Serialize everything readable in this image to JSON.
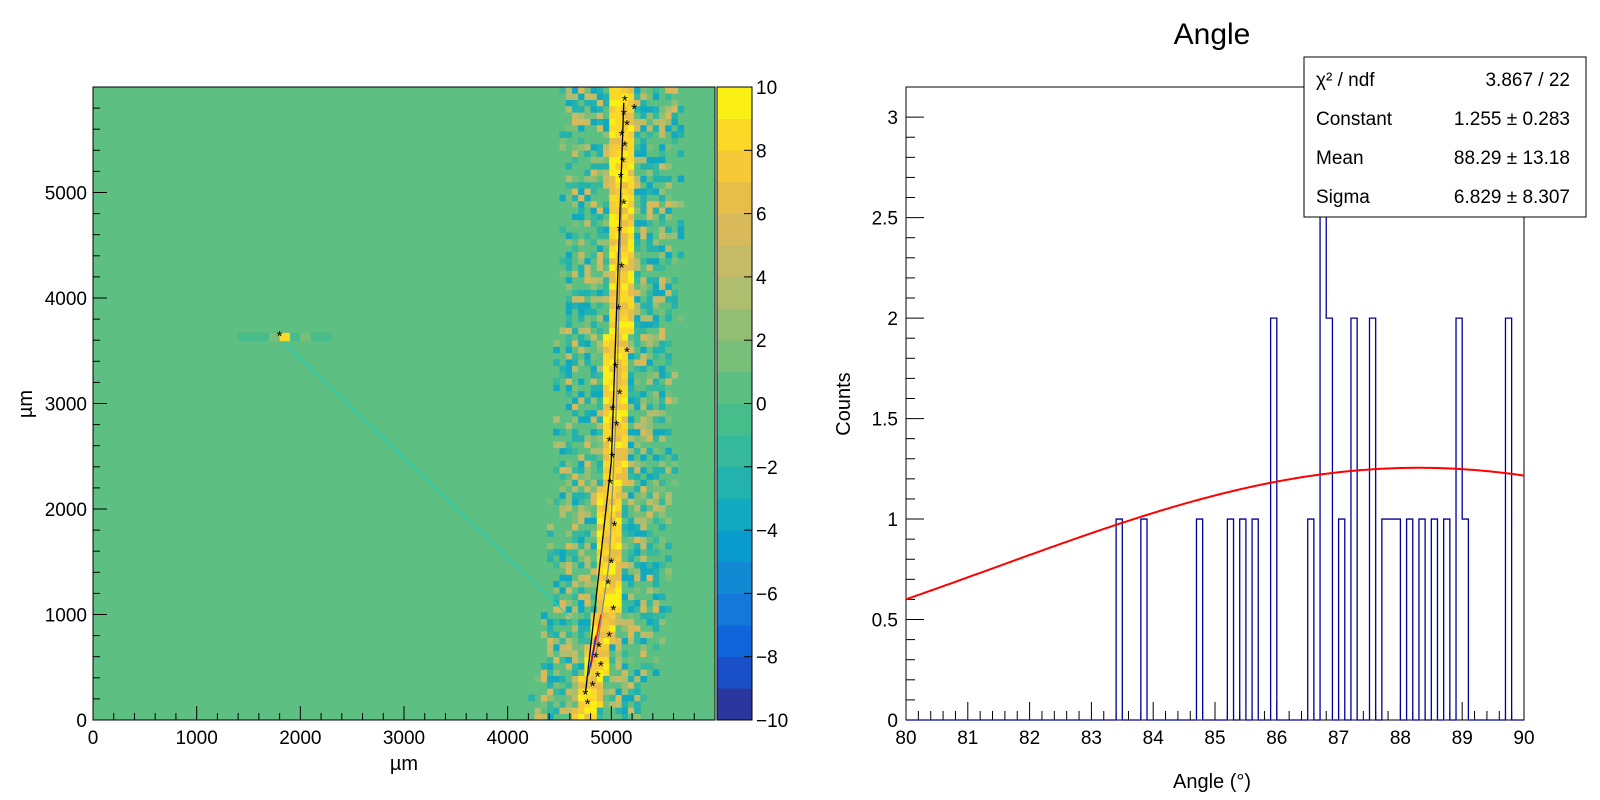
{
  "chart_data": [
    {
      "type": "heatmap",
      "title": "",
      "xlabel": "µm",
      "ylabel": "µm",
      "xlim": [
        0,
        6000
      ],
      "ylim": [
        0,
        6000
      ],
      "x_ticks": [
        "0",
        "1000",
        "2000",
        "3000",
        "4000",
        "5000"
      ],
      "y_ticks": [
        "0",
        "1000",
        "2000",
        "3000",
        "4000",
        "5000"
      ],
      "zlim": [
        -10,
        10
      ],
      "colorbar_ticks": [
        "10",
        "8",
        "6",
        "4",
        "2",
        "0",
        "−2",
        "−4",
        "−6",
        "−8",
        "−10"
      ],
      "background_value": 0,
      "track_band": {
        "centerline": [
          [
            4750,
            0
          ],
          [
            4850,
            500
          ],
          [
            4950,
            1000
          ],
          [
            5000,
            2000
          ],
          [
            5050,
            3000
          ],
          [
            5080,
            4000
          ],
          [
            5100,
            5000
          ],
          [
            5120,
            6000
          ]
        ],
        "core_half_width": 120,
        "halo_half_width": 500,
        "peak_value": 9
      },
      "isolated_cluster": {
        "y": 3620,
        "x_values": [
          1450,
          1550,
          1650,
          1750,
          1850,
          1950,
          2050,
          2150,
          2250
        ],
        "values": [
          -1,
          -1,
          -1,
          1,
          8,
          -1,
          1,
          -1,
          -1
        ]
      },
      "hits": [
        [
          4770,
          160
        ],
        [
          4750,
          250
        ],
        [
          4820,
          330
        ],
        [
          4870,
          420
        ],
        [
          4900,
          520
        ],
        [
          4850,
          600
        ],
        [
          4880,
          700
        ],
        [
          4980,
          800
        ],
        [
          5020,
          1050
        ],
        [
          4970,
          1300
        ],
        [
          5000,
          1500
        ],
        [
          5030,
          1850
        ],
        [
          4990,
          2250
        ],
        [
          5010,
          2500
        ],
        [
          4980,
          2650
        ],
        [
          5050,
          2800
        ],
        [
          5010,
          2950
        ],
        [
          5080,
          3100
        ],
        [
          5040,
          3350
        ],
        [
          5150,
          3500
        ],
        [
          5070,
          3900
        ],
        [
          5100,
          4300
        ],
        [
          5080,
          4650
        ],
        [
          5120,
          4900
        ],
        [
          5090,
          5150
        ],
        [
          5110,
          5300
        ],
        [
          5130,
          5450
        ],
        [
          5100,
          5550
        ],
        [
          5150,
          5650
        ],
        [
          5120,
          5750
        ],
        [
          5220,
          5800
        ],
        [
          5130,
          5880
        ],
        [
          1800,
          3650
        ]
      ],
      "tracks": [
        {
          "color": "#000000",
          "points": [
            [
              4750,
              250
            ],
            [
              5000,
              2450
            ],
            [
              5120,
              5850
            ]
          ]
        },
        {
          "color": "#ff0000",
          "points": [
            [
              4800,
              500
            ],
            [
              4900,
              1000
            ]
          ]
        },
        {
          "color": "#2a2ad0",
          "points": [
            [
              4780,
              420
            ],
            [
              4850,
              800
            ]
          ]
        },
        {
          "color": "#888888",
          "points": [
            [
              4850,
              600
            ],
            [
              4980,
              1500
            ],
            [
              5050,
              3000
            ],
            [
              5100,
              5000
            ]
          ]
        },
        {
          "color": "#1ed4c8",
          "points": [
            [
              1840,
              3580
            ],
            [
              4680,
              900
            ]
          ]
        }
      ]
    },
    {
      "type": "histogram",
      "title": "Angle",
      "xlabel": "Angle (°)",
      "ylabel": "Counts",
      "xlim": [
        80,
        90
      ],
      "ylim": [
        0,
        3.15
      ],
      "x_ticks": [
        "80",
        "81",
        "82",
        "83",
        "84",
        "85",
        "86",
        "87",
        "88",
        "89",
        "90"
      ],
      "y_ticks": [
        "0",
        "0.5",
        "1",
        "1.5",
        "2",
        "2.5",
        "3"
      ],
      "bin_width": 0.1,
      "bins": [
        {
          "x": 83.4,
          "count": 1
        },
        {
          "x": 83.8,
          "count": 1
        },
        {
          "x": 84.7,
          "count": 1
        },
        {
          "x": 85.2,
          "count": 1
        },
        {
          "x": 85.4,
          "count": 1
        },
        {
          "x": 85.6,
          "count": 1
        },
        {
          "x": 85.9,
          "count": 2
        },
        {
          "x": 86.5,
          "count": 1
        },
        {
          "x": 86.7,
          "count": 3
        },
        {
          "x": 86.8,
          "count": 2
        },
        {
          "x": 87.0,
          "count": 1
        },
        {
          "x": 87.2,
          "count": 2
        },
        {
          "x": 87.5,
          "count": 2
        },
        {
          "x": 87.7,
          "count": 1
        },
        {
          "x": 87.8,
          "count": 1
        },
        {
          "x": 87.9,
          "count": 1
        },
        {
          "x": 88.1,
          "count": 1
        },
        {
          "x": 88.3,
          "count": 1
        },
        {
          "x": 88.5,
          "count": 1
        },
        {
          "x": 88.7,
          "count": 1
        },
        {
          "x": 88.9,
          "count": 2
        },
        {
          "x": 89.0,
          "count": 1
        },
        {
          "x": 89.7,
          "count": 2
        }
      ],
      "line_color": "#000099",
      "fit": {
        "function": "gaus",
        "constant": 1.255,
        "mean": 88.29,
        "sigma": 6.829,
        "color": "#ff0000"
      },
      "stats_box": {
        "rows": [
          {
            "label": "χ² / ndf",
            "value": "3.867 / 22"
          },
          {
            "label": "Constant",
            "value": "1.255 ± 0.283"
          },
          {
            "label": "Mean",
            "value": "88.29 ± 13.18"
          },
          {
            "label": "Sigma",
            "value": "6.829 ± 8.307"
          }
        ],
        "placement": "top-right"
      }
    }
  ]
}
